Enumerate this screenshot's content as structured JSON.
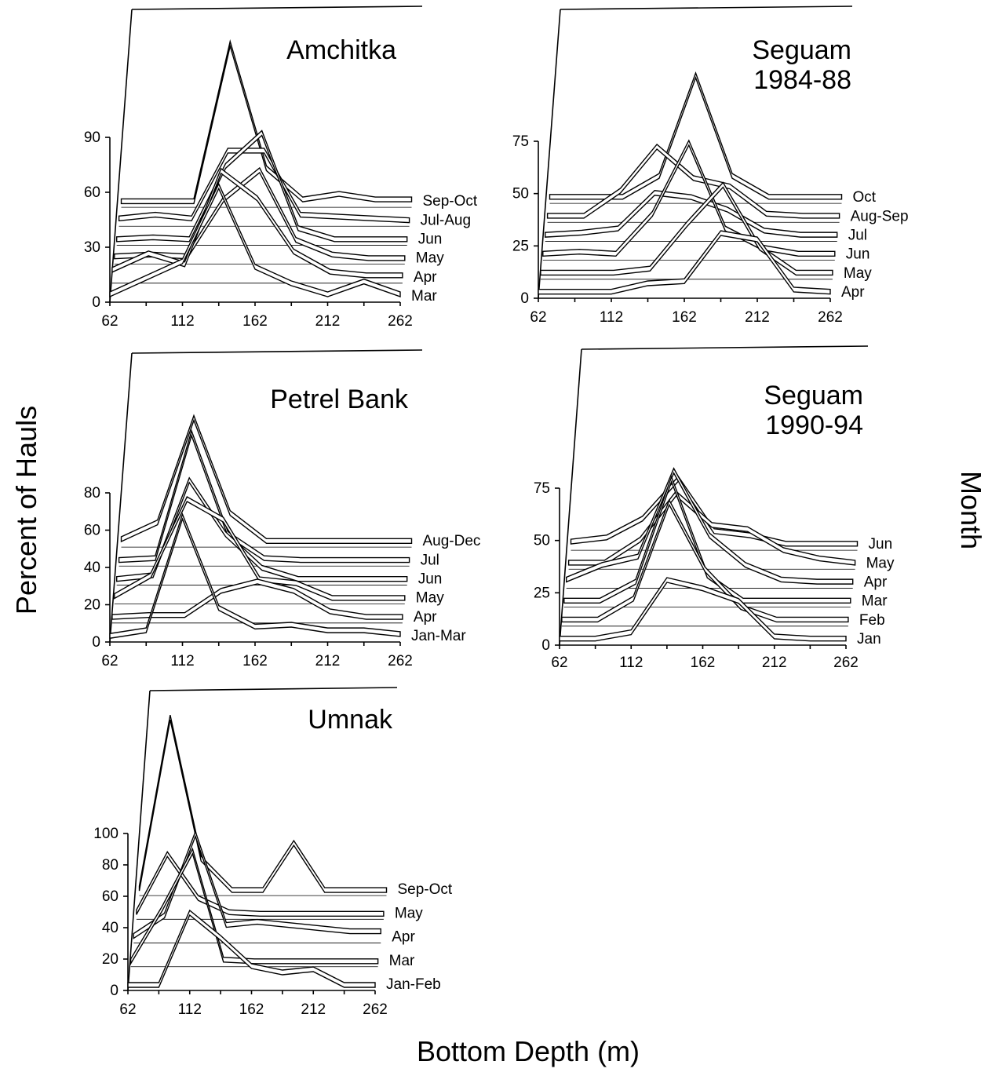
{
  "figure": {
    "y_axis_title": "Percent of Hauls",
    "x_axis_title": "Bottom Depth (m)",
    "z_axis_title": "Month"
  },
  "chart_data": [
    {
      "type": "line",
      "title": "Amchitka",
      "x": [
        62,
        87,
        112,
        137,
        162,
        187,
        212,
        237,
        262
      ],
      "x_tick_labels": [
        "62",
        "112",
        "162",
        "212",
        "262"
      ],
      "ylim": [
        0,
        90
      ],
      "y_ticks": [
        0,
        30,
        60,
        90
      ],
      "grid": true,
      "series": [
        {
          "name": "Mar",
          "values": [
            3,
            12,
            21,
            62,
            18,
            9,
            3,
            10,
            3
          ]
        },
        {
          "name": "Apr",
          "values": [
            6,
            15,
            9,
            60,
            45,
            16,
            5,
            3,
            3
          ]
        },
        {
          "name": "May",
          "values": [
            3,
            4,
            3,
            34,
            50,
            12,
            4,
            2,
            2
          ]
        },
        {
          "name": "Jun",
          "values": [
            2,
            3,
            2,
            42,
            60,
            8,
            2,
            2,
            2
          ]
        },
        {
          "name": "Jul-Aug",
          "values": [
            3,
            5,
            3,
            40,
            40,
            5,
            4,
            3,
            2
          ]
        },
        {
          "name": "Sep-Oct",
          "values": [
            2,
            2,
            2,
            88,
            20,
            3,
            6,
            3,
            3
          ]
        }
      ]
    },
    {
      "type": "line",
      "title": "Seguam\n1984-88",
      "x": [
        62,
        87,
        112,
        137,
        162,
        187,
        212,
        237,
        262
      ],
      "x_tick_labels": [
        "62",
        "112",
        "162",
        "212",
        "262"
      ],
      "ylim": [
        0,
        75
      ],
      "y_ticks": [
        0,
        25,
        50,
        75
      ],
      "grid": true,
      "series": [
        {
          "name": "Apr",
          "values": [
            2,
            2,
            2,
            6,
            7,
            30,
            27,
            3,
            2
          ]
        },
        {
          "name": "May",
          "values": [
            2,
            2,
            2,
            4,
            25,
            44,
            14,
            2,
            2
          ]
        },
        {
          "name": "Jun",
          "values": [
            2,
            3,
            2,
            21,
            55,
            14,
            5,
            2,
            2
          ]
        },
        {
          "name": "Jul",
          "values": [
            2,
            3,
            5,
            22,
            20,
            14,
            4,
            2,
            2
          ]
        },
        {
          "name": "Aug-Sep",
          "values": [
            2,
            2,
            14,
            35,
            20,
            16,
            3,
            2,
            2
          ]
        },
        {
          "name": "Oct",
          "values": [
            2,
            2,
            2,
            12,
            60,
            12,
            2,
            2,
            2
          ]
        }
      ]
    },
    {
      "type": "line",
      "title": "Petrel Bank",
      "x": [
        62,
        87,
        112,
        137,
        162,
        187,
        212,
        237,
        262
      ],
      "x_tick_labels": [
        "62",
        "112",
        "162",
        "212",
        "262"
      ],
      "ylim": [
        0,
        80
      ],
      "y_ticks": [
        0,
        20,
        40,
        60,
        80
      ],
      "grid": true,
      "series": [
        {
          "name": "Jan-Mar",
          "values": [
            2,
            5,
            66,
            17,
            7,
            8,
            5,
            5,
            3
          ]
        },
        {
          "name": "Apr",
          "values": [
            2,
            3,
            3,
            16,
            21,
            16,
            5,
            2,
            2
          ]
        },
        {
          "name": "May",
          "values": [
            3,
            14,
            55,
            44,
            12,
            10,
            2,
            2,
            2
          ]
        },
        {
          "name": "Jun",
          "values": [
            2,
            4,
            55,
            26,
            8,
            2,
            2,
            2,
            2
          ]
        },
        {
          "name": "Jul",
          "values": [
            2,
            3,
            70,
            16,
            3,
            2,
            2,
            2,
            2
          ]
        },
        {
          "name": "Aug-Dec",
          "values": [
            3,
            12,
            68,
            17,
            2,
            2,
            2,
            2,
            2
          ]
        }
      ]
    },
    {
      "type": "line",
      "title": "Seguam\n1990-94",
      "x": [
        62,
        87,
        112,
        137,
        162,
        187,
        212,
        237,
        262
      ],
      "x_tick_labels": [
        "62",
        "112",
        "162",
        "212",
        "262"
      ],
      "ylim": [
        0,
        75
      ],
      "y_ticks": [
        0,
        25,
        50,
        75
      ],
      "grid": true,
      "series": [
        {
          "name": "Jan",
          "values": [
            2,
            2,
            5,
            30,
            26,
            20,
            3,
            2,
            2
          ]
        },
        {
          "name": "Feb",
          "values": [
            2,
            2,
            12,
            58,
            26,
            8,
            2,
            2,
            2
          ]
        },
        {
          "name": "Mar",
          "values": [
            2,
            2,
            11,
            60,
            14,
            2,
            2,
            2,
            2
          ]
        },
        {
          "name": "Apr",
          "values": [
            3,
            10,
            14,
            55,
            24,
            10,
            3,
            2,
            2
          ]
        },
        {
          "name": "May",
          "values": [
            2,
            2,
            13,
            35,
            20,
            18,
            8,
            4,
            2
          ]
        },
        {
          "name": "Jun",
          "values": [
            3,
            5,
            14,
            33,
            8,
            6,
            2,
            2,
            2
          ]
        }
      ]
    },
    {
      "type": "line",
      "title": "Umnak",
      "x": [
        62,
        87,
        112,
        137,
        162,
        187,
        212,
        237,
        262
      ],
      "x_tick_labels": [
        "62",
        "112",
        "162",
        "212",
        "262"
      ],
      "ylim": [
        0,
        100
      ],
      "y_ticks": [
        0,
        20,
        40,
        60,
        80,
        100
      ],
      "grid": true,
      "series": [
        {
          "name": "Jan-Feb",
          "values": [
            2,
            2,
            48,
            32,
            14,
            10,
            12,
            2,
            2
          ]
        },
        {
          "name": "Mar",
          "values": [
            2,
            35,
            72,
            3,
            2,
            2,
            2,
            2,
            2
          ]
        },
        {
          "name": "Apr",
          "values": [
            3,
            16,
            68,
            10,
            12,
            10,
            8,
            6,
            6
          ]
        },
        {
          "name": "May",
          "values": [
            3,
            40,
            12,
            3,
            2,
            2,
            2,
            2,
            2
          ]
        },
        {
          "name": "Sep-Oct",
          "values": [
            3,
            112,
            22,
            2,
            2,
            32,
            2,
            2,
            2
          ]
        }
      ]
    }
  ]
}
